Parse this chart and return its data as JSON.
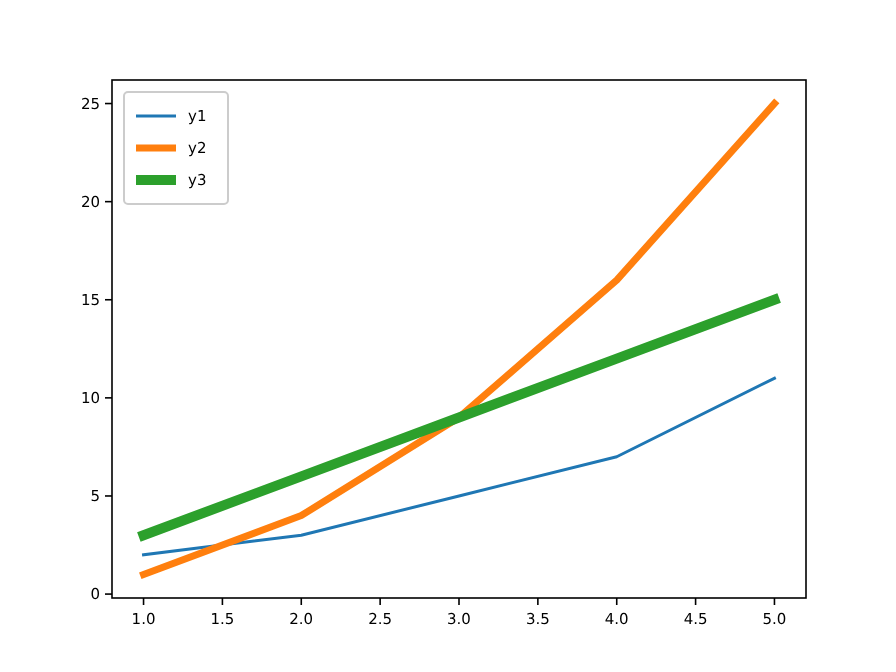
{
  "chart_data": {
    "type": "line",
    "x": [
      1,
      2,
      3,
      4,
      5
    ],
    "series": [
      {
        "name": "y1",
        "color": "#1f77b4",
        "values": [
          2,
          3,
          5,
          7,
          11
        ]
      },
      {
        "name": "y2",
        "color": "#ff7f0e",
        "values": [
          1,
          4,
          9,
          16,
          25
        ]
      },
      {
        "name": "y3",
        "color": "#2ca02c",
        "values": [
          3,
          6,
          9,
          12,
          15
        ]
      }
    ],
    "xlim": [
      0.8,
      5.2
    ],
    "ylim": [
      -0.2,
      26.2
    ],
    "xticks": [
      {
        "value": 1,
        "label": "1.0"
      },
      {
        "value": 1.5,
        "label": "1.5"
      },
      {
        "value": 2,
        "label": "2.0"
      },
      {
        "value": 2.5,
        "label": "2.5"
      },
      {
        "value": 3,
        "label": "3.0"
      },
      {
        "value": 3.5,
        "label": "3.5"
      },
      {
        "value": 4,
        "label": "4.0"
      },
      {
        "value": 4.5,
        "label": "4.5"
      },
      {
        "value": 5,
        "label": "5.0"
      }
    ],
    "yticks": [
      0,
      5,
      10,
      15,
      20,
      25
    ],
    "legend": "top left",
    "grid": false,
    "marker": "none",
    "line_style": "solid"
  }
}
